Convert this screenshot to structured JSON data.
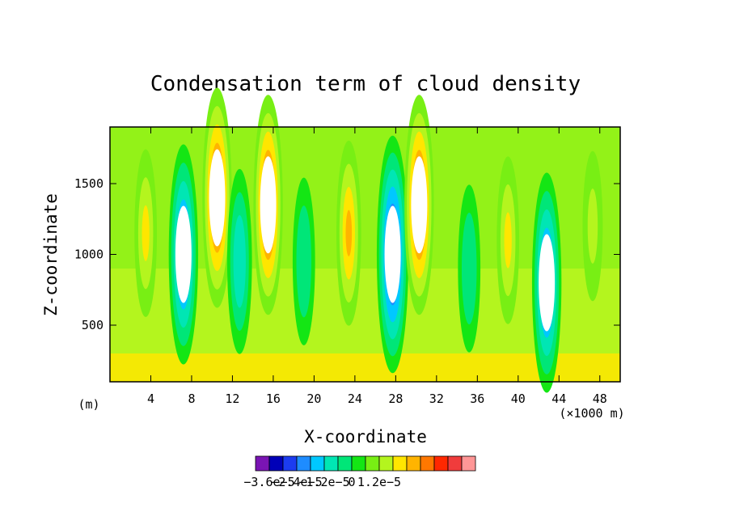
{
  "chart_data": {
    "type": "heatmap",
    "title": "Condensation term of cloud density",
    "xlabel": "X-coordinate",
    "ylabel": "Z-coordinate",
    "x_unit_label": "(m)",
    "x_scale_label": "(×1000 m)",
    "xlim": [
      0,
      50
    ],
    "ylim": [
      100,
      1900
    ],
    "x_ticks": [
      "4",
      "8",
      "12",
      "16",
      "20",
      "24",
      "28",
      "32",
      "36",
      "40",
      "44",
      "48"
    ],
    "y_ticks": [
      "500",
      "1000",
      "1500"
    ],
    "colorbar": {
      "levels": [
        -3.6e-05,
        -3e-05,
        -2.4e-05,
        -1.8e-05,
        -1.2e-05,
        -6e-06,
        0,
        6e-06,
        1.2e-05,
        1.8e-05
      ],
      "colors": [
        "#7a14b4",
        "#0000b8",
        "#1c3cf0",
        "#1e8cff",
        "#00c8ff",
        "#00e6b4",
        "#00e678",
        "#14e614",
        "#78ef14",
        "#b4f51e",
        "#ffe600",
        "#ffb400",
        "#ff7800",
        "#ff2800",
        "#f03c3c",
        "#ff9696"
      ],
      "tick_labels": [
        "−3.6e−5",
        "−2.4e−5",
        "−1.2e−5",
        "0",
        "1.2e−5"
      ]
    },
    "features": [
      {
        "kind": "positive",
        "x": 3.5,
        "z": 1150,
        "peak": 1.2e-05
      },
      {
        "kind": "negative",
        "x": 7.2,
        "z": 1000,
        "peak": -3e-05
      },
      {
        "kind": "positive",
        "x": 10.5,
        "z": 1400,
        "peak": 3e-05
      },
      {
        "kind": "negative",
        "x": 12.7,
        "z": 950,
        "peak": -1.8e-05
      },
      {
        "kind": "positive",
        "x": 15.5,
        "z": 1350,
        "peak": 3e-05
      },
      {
        "kind": "negative",
        "x": 19.0,
        "z": 950,
        "peak": -1.2e-05
      },
      {
        "kind": "positive",
        "x": 23.4,
        "z": 1150,
        "peak": 1.8e-05
      },
      {
        "kind": "negative",
        "x": 27.7,
        "z": 1000,
        "peak": -3.6e-05
      },
      {
        "kind": "positive",
        "x": 30.3,
        "z": 1350,
        "peak": 3e-05
      },
      {
        "kind": "negative",
        "x": 35.2,
        "z": 900,
        "peak": -1.2e-05
      },
      {
        "kind": "positive",
        "x": 39.0,
        "z": 1100,
        "peak": 1.2e-05
      },
      {
        "kind": "negative",
        "x": 42.8,
        "z": 800,
        "peak": -3e-05
      },
      {
        "kind": "positive",
        "x": 47.3,
        "z": 1200,
        "peak": 6e-06
      }
    ]
  }
}
